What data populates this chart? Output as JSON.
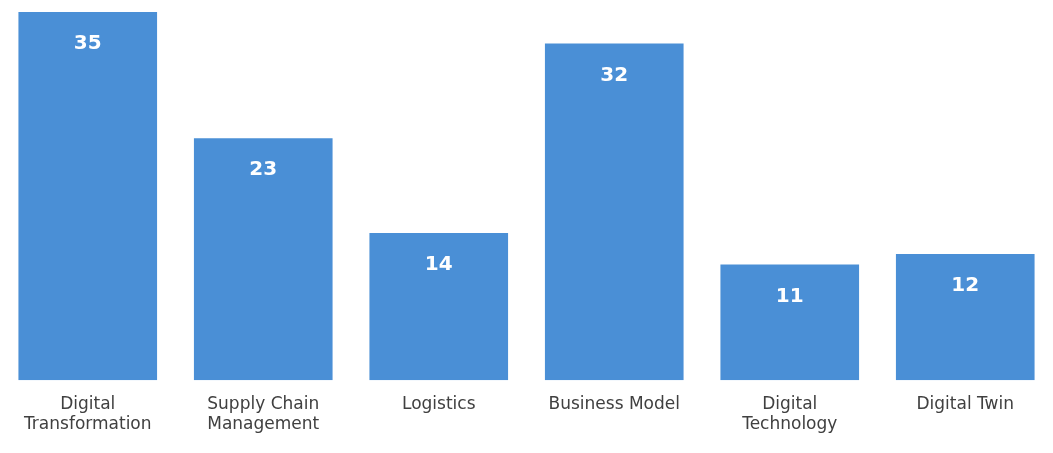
{
  "chart_data": {
    "type": "bar",
    "categories": [
      "Digital Transformation",
      "Supply Chain Management",
      "Logistics",
      "Business Model",
      "Digital Technology",
      "Digital Twin"
    ],
    "values": [
      35,
      23,
      14,
      32,
      11,
      12
    ],
    "color": "#4a8fd6",
    "data_labels": true,
    "grid": false,
    "legend": false,
    "tick_labels": "x"
  }
}
